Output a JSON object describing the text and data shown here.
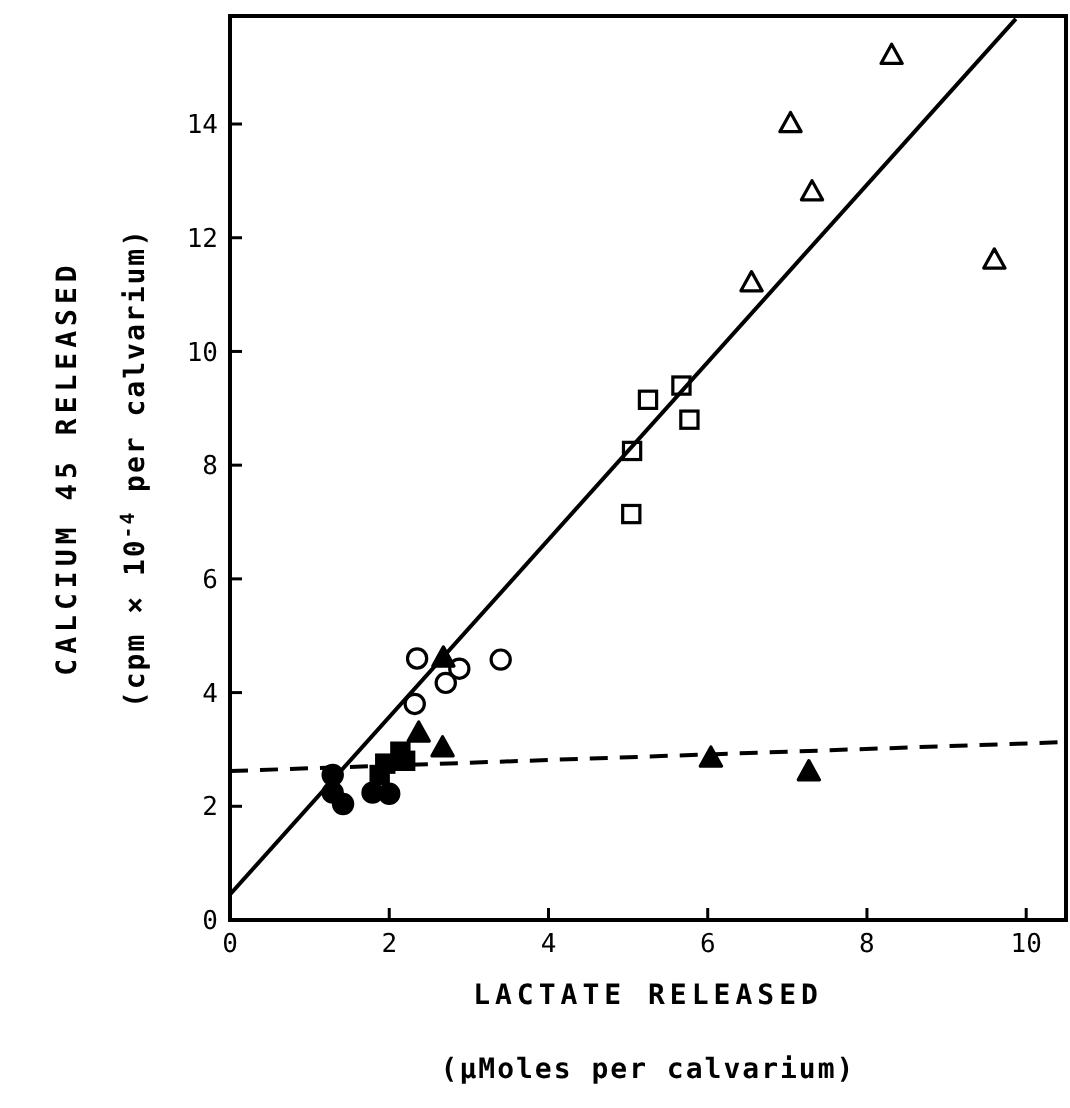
{
  "chart_data": {
    "type": "scatter",
    "xlabel": "LACTATE RELEASED\n(µMoles per calvarium)",
    "ylabel": "CALCIUM 45 RELEASED\n(cpm × 10$^{-4}$ per calvarium)",
    "xlim": [
      0,
      10.5
    ],
    "ylim": [
      0,
      15.9
    ],
    "xticks": [
      0,
      2,
      4,
      6,
      8,
      10
    ],
    "yticks": [
      0,
      2,
      4,
      6,
      8,
      10,
      12,
      14
    ],
    "series": [
      {
        "marker": "triangle",
        "color": "#ffffff",
        "x": [
          8.31,
          7.04,
          7.31,
          6.55,
          9.6
        ],
        "values": [
          15.2,
          14.0,
          12.8,
          11.2,
          11.6
        ]
      },
      {
        "marker": "square",
        "color": "#ffffff",
        "x": [
          5.05,
          5.25,
          5.67,
          5.77,
          5.04
        ],
        "values": [
          8.25,
          9.15,
          9.4,
          8.8,
          7.14
        ]
      },
      {
        "marker": "circle",
        "color": "#ffffff",
        "x": [
          2.35,
          3.4,
          2.32,
          2.71,
          2.88
        ],
        "values": [
          4.6,
          4.58,
          3.8,
          4.17,
          4.42
        ]
      },
      {
        "marker": "triangle",
        "color": "#000000",
        "x": [
          2.68,
          2.37,
          2.67,
          6.04,
          7.27
        ],
        "values": [
          4.6,
          3.28,
          3.02,
          2.84,
          2.6
        ]
      },
      {
        "marker": "square",
        "color": "#000000",
        "x": [
          1.95,
          2.14,
          2.2,
          1.88
        ],
        "values": [
          2.75,
          2.96,
          2.8,
          2.55
        ]
      },
      {
        "marker": "circle",
        "color": "#000000",
        "x": [
          1.29,
          1.29,
          1.42,
          1.79,
          2.0
        ],
        "values": [
          2.55,
          2.24,
          2.04,
          2.24,
          2.22
        ]
      },
      {
        "type": "line",
        "marker": "none",
        "line_style": "solid",
        "color": "#000000",
        "x": [
          0,
          9.87
        ],
        "values": [
          0.45,
          15.85
        ]
      },
      {
        "type": "line",
        "marker": "none",
        "line_style": "dashed",
        "color": "#000000",
        "x": [
          0,
          10.5
        ],
        "values": [
          2.62,
          3.13
        ]
      }
    ]
  }
}
